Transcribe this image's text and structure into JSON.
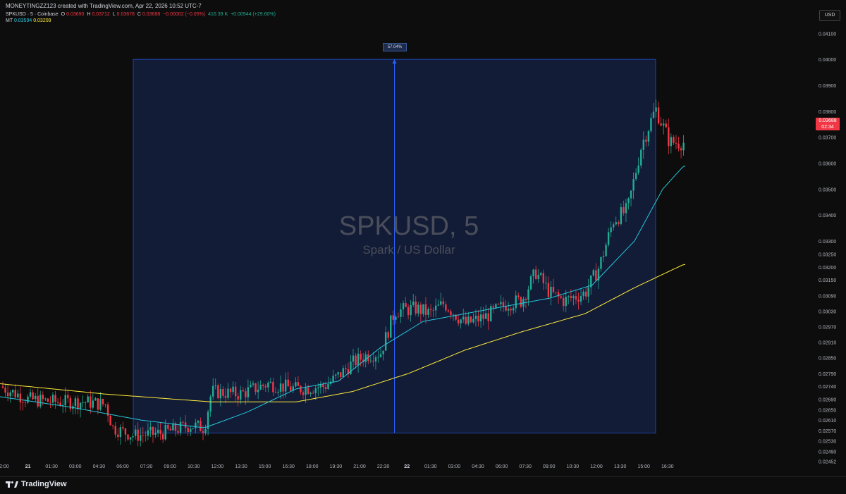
{
  "header": {
    "created_by": "MONEYTINGZZ123 created with TradingView.com, Apr 22, 2026 10:52 UTC-7",
    "symbol_line": "SPKUSD · 5 · Coinbase",
    "open_label": "O",
    "open": "0.03690",
    "high_label": "H",
    "high": "0.03712",
    "low_label": "L",
    "low": "0.03678",
    "close_label": "C",
    "close": "0.03688",
    "change": "−0.00002 (−0.05%)",
    "volume": "416.39 K",
    "volume_change": "+0.00944 (+29.60%)",
    "indicator_label": "MT",
    "ma_fast": "0.03594",
    "ma_slow": "0.03209",
    "icons": "🔘 ⊙ ⊚ ⊗ ⊝ ⋯ ⋯"
  },
  "toolbar": {
    "currency": "USD"
  },
  "watermark": {
    "title": "SPKUSD, 5",
    "subtitle": "Spark / US Dollar"
  },
  "last_price": {
    "price": "0.03688",
    "countdown": "02:34"
  },
  "measure": {
    "label": "57.04%"
  },
  "footer": {
    "brand": "TradingView"
  },
  "colors": {
    "background": "#0d0d0d",
    "up": "#22ab94",
    "down": "#f23645",
    "ma_fast": "#26c6da",
    "ma_slow": "#ffeb3b",
    "measure_fill": "#142040",
    "measure_border": "#2962ff"
  },
  "chart_data": {
    "type": "candlestick",
    "y_ticks": [
      "0.04100",
      "0.04000",
      "0.03900",
      "0.03800",
      "0.03700",
      "0.03600",
      "0.03500",
      "0.03400",
      "0.03300",
      "0.03250",
      "0.03200",
      "0.03150",
      "0.03090",
      "0.03030",
      "0.02970",
      "0.02910",
      "0.02850",
      "0.02790",
      "0.02740",
      "0.02690",
      "0.02650",
      "0.02610",
      "0.02570",
      "0.02530",
      "0.02490",
      "0.02452"
    ],
    "x_ticks": [
      "2:00",
      "21",
      "01:30",
      "03:00",
      "04:30",
      "06:00",
      "07:30",
      "09:00",
      "10:30",
      "12:00",
      "13:30",
      "15:00",
      "16:30",
      "18:00",
      "19:30",
      "21:00",
      "22:30",
      "22",
      "01:30",
      "03:00",
      "04:30",
      "06:00",
      "07:30",
      "09:00",
      "10:30",
      "12:00",
      "13:30",
      "15:00",
      "16:30"
    ],
    "price_path": [
      [
        0,
        0.0274
      ],
      [
        40,
        0.0269
      ],
      [
        80,
        0.0268
      ],
      [
        120,
        0.0268
      ],
      [
        150,
        0.0267
      ],
      [
        160,
        0.0258
      ],
      [
        190,
        0.0255
      ],
      [
        230,
        0.0256
      ],
      [
        270,
        0.0259
      ],
      [
        290,
        0.0258
      ],
      [
        300,
        0.0272
      ],
      [
        340,
        0.0271
      ],
      [
        380,
        0.0275
      ],
      [
        420,
        0.0273
      ],
      [
        460,
        0.0274
      ],
      [
        480,
        0.0278
      ],
      [
        500,
        0.0283
      ],
      [
        520,
        0.0286
      ],
      [
        540,
        0.0287
      ],
      [
        560,
        0.0303
      ],
      [
        590,
        0.0304
      ],
      [
        610,
        0.0302
      ],
      [
        630,
        0.0306
      ],
      [
        660,
        0.0298
      ],
      [
        690,
        0.0301
      ],
      [
        720,
        0.0306
      ],
      [
        740,
        0.0307
      ],
      [
        760,
        0.0318
      ],
      [
        780,
        0.031
      ],
      [
        800,
        0.0307
      ],
      [
        830,
        0.031
      ],
      [
        850,
        0.032
      ],
      [
        870,
        0.0338
      ],
      [
        890,
        0.0342
      ],
      [
        910,
        0.0367
      ],
      [
        930,
        0.0381
      ],
      [
        950,
        0.0368
      ],
      [
        970,
        0.0368
      ]
    ],
    "ma_fast_path": [
      [
        0,
        0.027
      ],
      [
        100,
        0.0266
      ],
      [
        200,
        0.0261
      ],
      [
        290,
        0.0258
      ],
      [
        350,
        0.0264
      ],
      [
        420,
        0.0273
      ],
      [
        480,
        0.0276
      ],
      [
        540,
        0.0289
      ],
      [
        600,
        0.0299
      ],
      [
        660,
        0.0302
      ],
      [
        720,
        0.0305
      ],
      [
        780,
        0.0308
      ],
      [
        840,
        0.0313
      ],
      [
        900,
        0.033
      ],
      [
        940,
        0.035
      ],
      [
        970,
        0.0359
      ]
    ],
    "ma_slow_path": [
      [
        0,
        0.0275
      ],
      [
        150,
        0.0271
      ],
      [
        300,
        0.0268
      ],
      [
        420,
        0.0268
      ],
      [
        500,
        0.0272
      ],
      [
        580,
        0.0279
      ],
      [
        660,
        0.0288
      ],
      [
        740,
        0.0295
      ],
      [
        830,
        0.0302
      ],
      [
        900,
        0.0312
      ],
      [
        970,
        0.0321
      ]
    ],
    "measure_range": {
      "from_price": 0.0256,
      "to_price": 0.04,
      "change": "57.04%"
    },
    "ylim": [
      0.0245,
      0.0412
    ]
  }
}
